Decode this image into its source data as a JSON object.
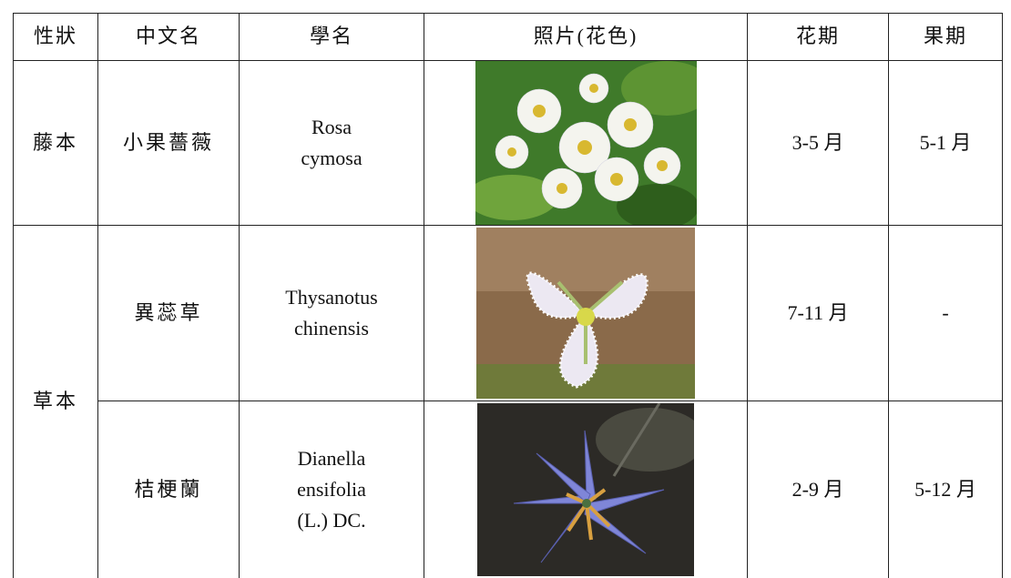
{
  "table": {
    "header": [
      "性狀",
      "中文名",
      "學名",
      "照片(花色)",
      "花期",
      "果期"
    ],
    "groups": [
      {
        "habit": "藤本",
        "species": [
          {
            "name": "小果薔薇",
            "scientific_name": [
              "Rosa",
              "cymosa"
            ],
            "flowering": "3-5 月",
            "fruiting": "5-1 月"
          }
        ]
      },
      {
        "habit": "草本",
        "species": [
          {
            "name": "異蕊草",
            "scientific_name": [
              "Thysanotus",
              "chinensis"
            ],
            "flowering": "7-11 月",
            "fruiting": "-"
          },
          {
            "name": "桔梗蘭",
            "scientific_name": [
              "Dianella",
              "ensifolia",
              "(L.) DC."
            ],
            "flowering": "2-9 月",
            "fruiting": "5-12 月"
          }
        ]
      }
    ]
  }
}
